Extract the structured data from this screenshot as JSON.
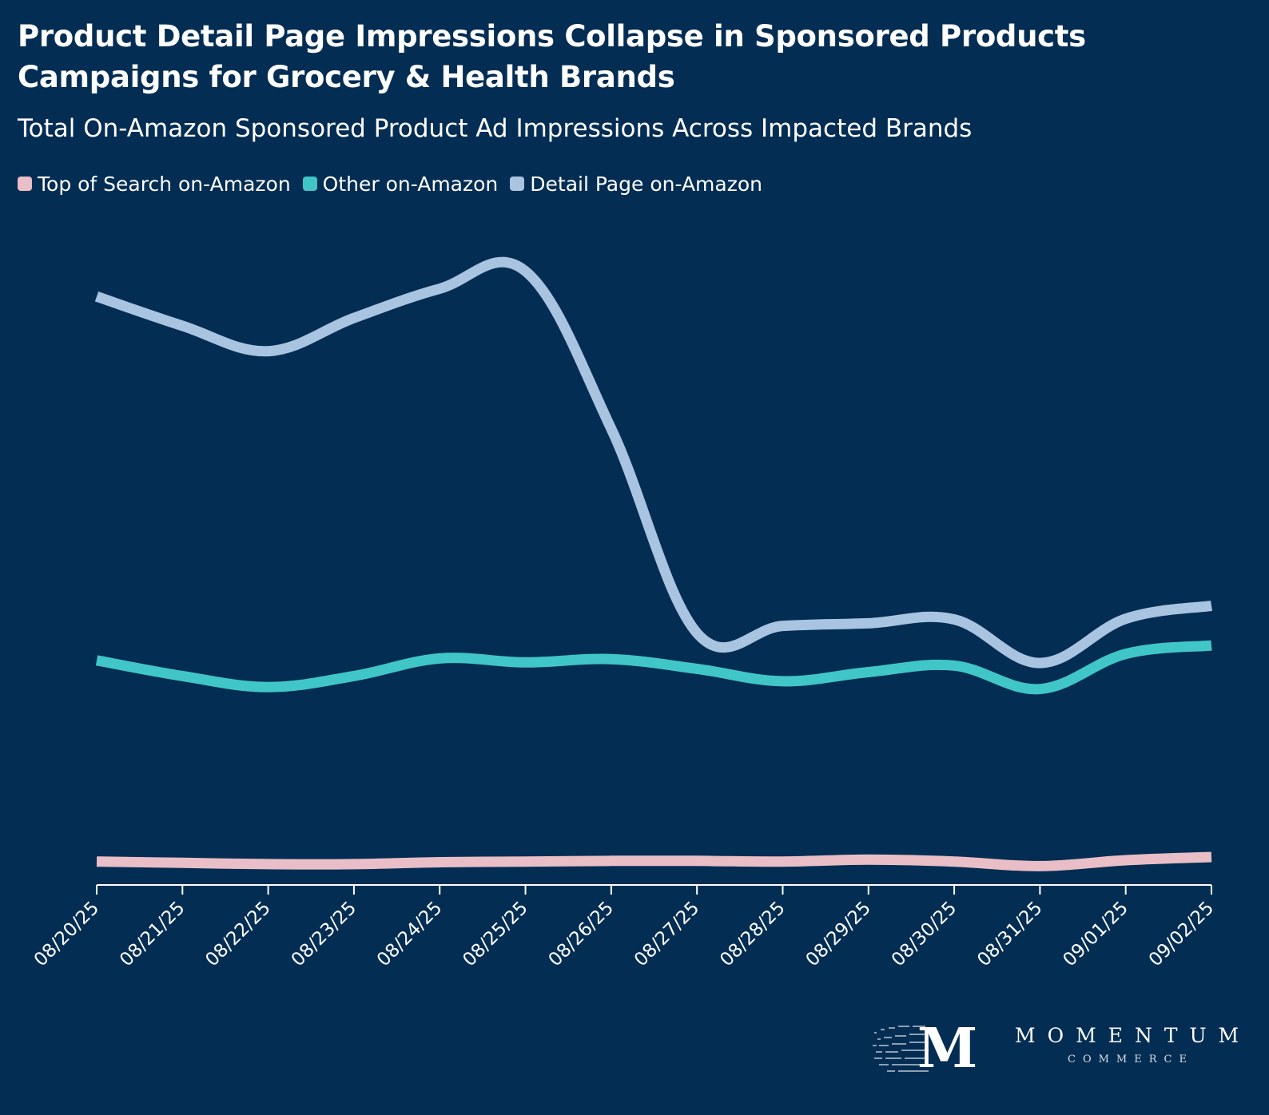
{
  "header": {
    "title": "Product Detail Page Impressions Collapse in Sponsored Products Campaigns for Grocery & Health Brands",
    "subtitle": "Total On-Amazon Sponsored Product Ad Impressions Across Impacted Brands"
  },
  "legend": {
    "items": [
      {
        "label": "Top of Search on-Amazon",
        "color": "#E9BEC6"
      },
      {
        "label": "Other on-Amazon",
        "color": "#40C6C7"
      },
      {
        "label": "Detail Page on-Amazon",
        "color": "#A9C4E0"
      }
    ]
  },
  "chart_data": {
    "type": "line",
    "title": "Product Detail Page Impressions Collapse in Sponsored Products Campaigns for Grocery & Health Brands",
    "subtitle": "Total On-Amazon Sponsored Product Ad Impressions Across Impacted Brands",
    "xlabel": "",
    "ylabel": "",
    "y_axis_shown": false,
    "grid": false,
    "legend_position": "top-left",
    "ylim": [
      0,
      100
    ],
    "categories": [
      "08/20/25",
      "08/21/25",
      "08/22/25",
      "08/23/25",
      "08/24/25",
      "08/25/25",
      "08/26/25",
      "08/27/25",
      "08/28/25",
      "08/29/25",
      "08/30/25",
      "08/31/25",
      "09/01/25",
      "09/02/25"
    ],
    "series": [
      {
        "name": "Top of Search on-Amazon",
        "color": "#E9BEC6",
        "values": [
          3.6,
          3.4,
          3.2,
          3.2,
          3.5,
          3.6,
          3.7,
          3.7,
          3.6,
          3.9,
          3.6,
          2.9,
          3.8,
          4.3
        ]
      },
      {
        "name": "Other on-Amazon",
        "color": "#40C6C7",
        "values": [
          34.5,
          32.1,
          30.4,
          32.1,
          34.8,
          34.2,
          34.7,
          33.2,
          31.3,
          32.7,
          33.7,
          30.1,
          35.5,
          36.8
        ]
      },
      {
        "name": "Detail Page on-Amazon",
        "color": "#A9C4E0",
        "values": [
          90.4,
          85.9,
          82.0,
          87.1,
          91.6,
          94.3,
          70.1,
          38.7,
          39.8,
          40.2,
          40.8,
          34.1,
          40.9,
          42.9
        ]
      }
    ]
  },
  "logo": {
    "mark": "M",
    "wordmark": "MOMENTUM",
    "tagline": "COMMERCE"
  }
}
